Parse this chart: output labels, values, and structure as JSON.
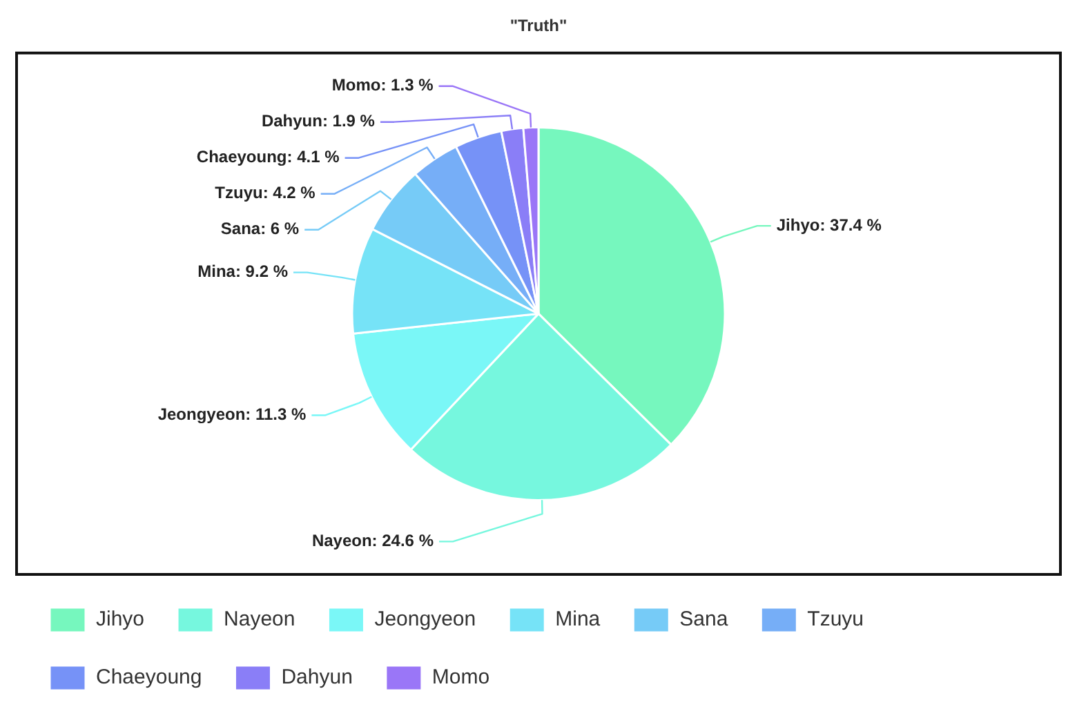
{
  "chart_data": {
    "type": "pie",
    "title": "\"Truth\"",
    "categories": [
      "Jihyo",
      "Nayeon",
      "Jeongyeon",
      "Mina",
      "Sana",
      "Tzuyu",
      "Chaeyoung",
      "Dahyun",
      "Momo"
    ],
    "values": [
      37.4,
      24.6,
      11.3,
      9.2,
      6,
      4.2,
      4.1,
      1.9,
      1.3
    ],
    "value_labels": [
      "Jihyo: 37.4 %",
      "Nayeon: 24.6 %",
      "Jeongyeon: 11.3 %",
      "Mina: 9.2 %",
      "Sana: 6 %",
      "Tzuyu: 4.2 %",
      "Chaeyoung: 4.1 %",
      "Dahyun: 1.9 %",
      "Momo: 1.3 %"
    ],
    "colors": [
      "#76f7be",
      "#76f7de",
      "#7af7f7",
      "#76e3f7",
      "#76cbf7",
      "#76aef7",
      "#7692f7",
      "#8a7ef7",
      "#9a76f7"
    ],
    "legend": "bottom"
  }
}
